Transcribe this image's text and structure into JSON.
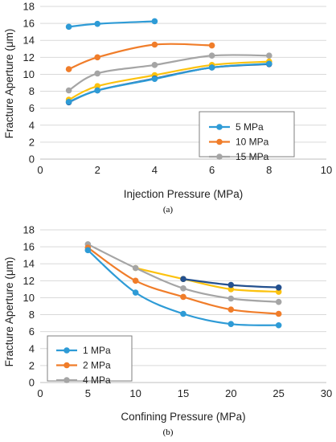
{
  "colors": {
    "blue": "#2e9bd6",
    "orange": "#f07d2a",
    "gray": "#a5a5a5",
    "yellow": "#fcc20e",
    "darkblue": "#23508f",
    "grid": "#d9d9d9",
    "axis": "#bfbfbf"
  },
  "chart_data": [
    {
      "id": "a",
      "panel_label": "(a)",
      "type": "line",
      "xlabel": "Injection Pressure (MPa)",
      "ylabel": "Fracture Aperture (μm)",
      "xlim": [
        0,
        10
      ],
      "ylim": [
        0,
        18
      ],
      "xticks": [
        "0",
        "2",
        "4",
        "6",
        "8",
        "10"
      ],
      "yticks": [
        "0",
        "2",
        "4",
        "6",
        "8",
        "10",
        "12",
        "14",
        "16",
        "18"
      ],
      "grid": "horizontal",
      "legend_position": "bottom-right",
      "series": [
        {
          "name": "5 MPa",
          "color": "blue",
          "x": [
            1,
            2,
            4
          ],
          "y": [
            15.6,
            15.95,
            16.25
          ],
          "legend": true
        },
        {
          "name": "10 MPa",
          "color": "orange",
          "x": [
            1,
            2,
            4,
            6
          ],
          "y": [
            10.6,
            12.0,
            13.5,
            13.4
          ],
          "legend": true
        },
        {
          "name": "15 MPa",
          "color": "gray",
          "x": [
            1,
            2,
            4,
            6,
            8
          ],
          "y": [
            8.1,
            10.1,
            11.1,
            12.2,
            12.2
          ],
          "legend": true
        },
        {
          "color": "yellow",
          "x": [
            1,
            2,
            4,
            6,
            8
          ],
          "y": [
            7.0,
            8.6,
            9.9,
            11.1,
            11.5
          ],
          "legend": false
        },
        {
          "color": "darkblue",
          "x": [
            1,
            2,
            4,
            6,
            8
          ],
          "y": [
            6.7,
            8.1,
            9.5,
            10.8,
            11.2
          ],
          "legend": false
        },
        {
          "color": "blue",
          "x": [
            1,
            2,
            4,
            6,
            8
          ],
          "y": [
            6.75,
            8.1,
            9.45,
            10.8,
            11.25
          ],
          "legend": false
        }
      ]
    },
    {
      "id": "b",
      "panel_label": "(b)",
      "type": "line",
      "xlabel": "Confining Pressure (MPa)",
      "ylabel": "Fracture Aperture (μm)",
      "xlim": [
        0,
        30
      ],
      "ylim": [
        0,
        18
      ],
      "xticks": [
        "0",
        "5",
        "10",
        "15",
        "20",
        "25",
        "30"
      ],
      "yticks": [
        "0",
        "2",
        "4",
        "6",
        "8",
        "10",
        "12",
        "14",
        "16",
        "18"
      ],
      "grid": "horizontal",
      "legend_position": "bottom-left",
      "series": [
        {
          "color": "yellow",
          "x": [
            10,
            15,
            20,
            25
          ],
          "y": [
            13.5,
            12.2,
            11.0,
            10.7
          ],
          "legend": false
        },
        {
          "color": "darkblue",
          "x": [
            15,
            20,
            25
          ],
          "y": [
            12.2,
            11.5,
            11.2
          ],
          "legend": false
        },
        {
          "name": "4 MPa",
          "color": "gray",
          "x": [
            5,
            10,
            15,
            20,
            25
          ],
          "y": [
            16.3,
            13.5,
            11.1,
            9.9,
            9.5
          ],
          "legend": true
        },
        {
          "name": "2 MPa",
          "color": "orange",
          "x": [
            5,
            10,
            15,
            20,
            25
          ],
          "y": [
            15.9,
            12.0,
            10.1,
            8.6,
            8.1
          ],
          "legend": true
        },
        {
          "name": "1 MPa",
          "color": "blue",
          "x": [
            5,
            10,
            15,
            20,
            25
          ],
          "y": [
            15.6,
            10.6,
            8.1,
            6.9,
            6.75
          ],
          "legend": true
        }
      ],
      "legend_order": [
        "1 MPa",
        "2 MPa",
        "4 MPa"
      ]
    }
  ]
}
